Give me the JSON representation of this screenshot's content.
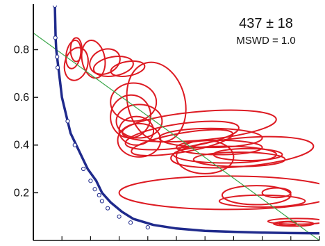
{
  "chart_data": {
    "type": "scatter",
    "title": "",
    "xlabel": "",
    "ylabel": "",
    "xlim": [
      0,
      1
    ],
    "ylim": [
      0,
      0.985
    ],
    "x_ticks_count": 11,
    "y_ticks": [
      {
        "value": 0.2,
        "label": "0.2"
      },
      {
        "value": 0.4,
        "label": "0.4"
      },
      {
        "value": 0.6,
        "label": "0.6"
      },
      {
        "value": 0.8,
        "label": "0.8"
      }
    ],
    "annotation": {
      "age": "437 ± 18",
      "mswd": "MSWD = 1.0"
    },
    "colors": {
      "ellipse": "#dd1a22",
      "concordia": "#1f2a8c",
      "regression": "#3aa64a",
      "axis": "#111111"
    },
    "concordia": [
      [
        0.075,
        1.0
      ],
      [
        0.077,
        0.9
      ],
      [
        0.078,
        0.85
      ],
      [
        0.08,
        0.8
      ],
      [
        0.085,
        0.75
      ],
      [
        0.09,
        0.7
      ],
      [
        0.1,
        0.6
      ],
      [
        0.12,
        0.5
      ],
      [
        0.13,
        0.45
      ],
      [
        0.15,
        0.4
      ],
      [
        0.17,
        0.35
      ],
      [
        0.19,
        0.3
      ],
      [
        0.22,
        0.25
      ],
      [
        0.24,
        0.2
      ],
      [
        0.27,
        0.16
      ],
      [
        0.31,
        0.12
      ],
      [
        0.35,
        0.09
      ],
      [
        0.42,
        0.065
      ],
      [
        0.5,
        0.05
      ],
      [
        0.6,
        0.04
      ],
      [
        0.7,
        0.036
      ],
      [
        0.8,
        0.033
      ],
      [
        0.9,
        0.031
      ],
      [
        1.0,
        0.03
      ]
    ],
    "concordia_markers": [
      [
        0.075,
        0.985
      ],
      [
        0.077,
        0.85
      ],
      [
        0.083,
        0.77
      ],
      [
        0.085,
        0.725
      ],
      [
        0.12,
        0.5
      ],
      [
        0.145,
        0.4
      ],
      [
        0.175,
        0.3
      ],
      [
        0.2,
        0.25
      ],
      [
        0.215,
        0.215
      ],
      [
        0.23,
        0.19
      ],
      [
        0.24,
        0.165
      ],
      [
        0.26,
        0.135
      ],
      [
        0.3,
        0.1
      ],
      [
        0.34,
        0.075
      ],
      [
        0.4,
        0.055
      ]
    ],
    "regression_line": [
      [
        0.0,
        0.87
      ],
      [
        1.0,
        0.0
      ]
    ],
    "ellipses": [
      {
        "cx": 0.14,
        "cy": 0.78,
        "rx": 0.025,
        "ry": 0.06,
        "rot": 10
      },
      {
        "cx": 0.15,
        "cy": 0.8,
        "rx": 0.02,
        "ry": 0.05,
        "rot": 0
      },
      {
        "cx": 0.15,
        "cy": 0.74,
        "rx": 0.04,
        "ry": 0.07,
        "rot": 15
      },
      {
        "cx": 0.21,
        "cy": 0.76,
        "rx": 0.04,
        "ry": 0.08,
        "rot": -10
      },
      {
        "cx": 0.25,
        "cy": 0.75,
        "rx": 0.055,
        "ry": 0.05,
        "rot": -25
      },
      {
        "cx": 0.28,
        "cy": 0.73,
        "rx": 0.07,
        "ry": 0.04,
        "rot": -10
      },
      {
        "cx": 0.33,
        "cy": 0.72,
        "rx": 0.06,
        "ry": 0.03,
        "rot": -10
      },
      {
        "cx": 0.43,
        "cy": 0.58,
        "rx": 0.1,
        "ry": 0.17,
        "rot": -15
      },
      {
        "cx": 0.35,
        "cy": 0.58,
        "rx": 0.08,
        "ry": 0.08,
        "rot": 0
      },
      {
        "cx": 0.34,
        "cy": 0.52,
        "rx": 0.07,
        "ry": 0.09,
        "rot": 10
      },
      {
        "cx": 0.37,
        "cy": 0.5,
        "rx": 0.08,
        "ry": 0.07,
        "rot": 0
      },
      {
        "cx": 0.36,
        "cy": 0.46,
        "rx": 0.06,
        "ry": 0.06,
        "rot": 0
      },
      {
        "cx": 0.37,
        "cy": 0.42,
        "rx": 0.075,
        "ry": 0.07,
        "rot": 0
      },
      {
        "cx": 0.58,
        "cy": 0.48,
        "rx": 0.27,
        "ry": 0.06,
        "rot": -5
      },
      {
        "cx": 0.52,
        "cy": 0.44,
        "rx": 0.2,
        "ry": 0.05,
        "rot": -8
      },
      {
        "cx": 0.62,
        "cy": 0.43,
        "rx": 0.18,
        "ry": 0.04,
        "rot": 0
      },
      {
        "cx": 0.52,
        "cy": 0.41,
        "rx": 0.18,
        "ry": 0.04,
        "rot": -10
      },
      {
        "cx": 0.65,
        "cy": 0.39,
        "rx": 0.15,
        "ry": 0.03,
        "rot": 0
      },
      {
        "cx": 0.67,
        "cy": 0.36,
        "rx": 0.18,
        "ry": 0.035,
        "rot": 0
      },
      {
        "cx": 0.73,
        "cy": 0.37,
        "rx": 0.25,
        "ry": 0.06,
        "rot": -5
      },
      {
        "cx": 0.72,
        "cy": 0.34,
        "rx": 0.16,
        "ry": 0.03,
        "rot": 0
      },
      {
        "cx": 0.75,
        "cy": 0.36,
        "rx": 0.12,
        "ry": 0.025,
        "rot": 0
      },
      {
        "cx": 0.6,
        "cy": 0.35,
        "rx": 0.1,
        "ry": 0.07,
        "rot": 0
      },
      {
        "cx": 0.68,
        "cy": 0.2,
        "rx": 0.38,
        "ry": 0.07,
        "rot": 0
      },
      {
        "cx": 0.78,
        "cy": 0.19,
        "rx": 0.12,
        "ry": 0.04,
        "rot": 0
      },
      {
        "cx": 0.8,
        "cy": 0.165,
        "rx": 0.15,
        "ry": 0.025,
        "rot": 0
      },
      {
        "cx": 0.85,
        "cy": 0.2,
        "rx": 0.05,
        "ry": 0.02,
        "rot": 0
      },
      {
        "cx": 0.92,
        "cy": 0.08,
        "rx": 0.1,
        "ry": 0.012,
        "rot": 0
      },
      {
        "cx": 0.91,
        "cy": 0.07,
        "rx": 0.07,
        "ry": 0.01,
        "rot": 0
      },
      {
        "cx": 0.89,
        "cy": 0.07,
        "rx": 0.03,
        "ry": 0.008,
        "rot": 0
      }
    ]
  }
}
